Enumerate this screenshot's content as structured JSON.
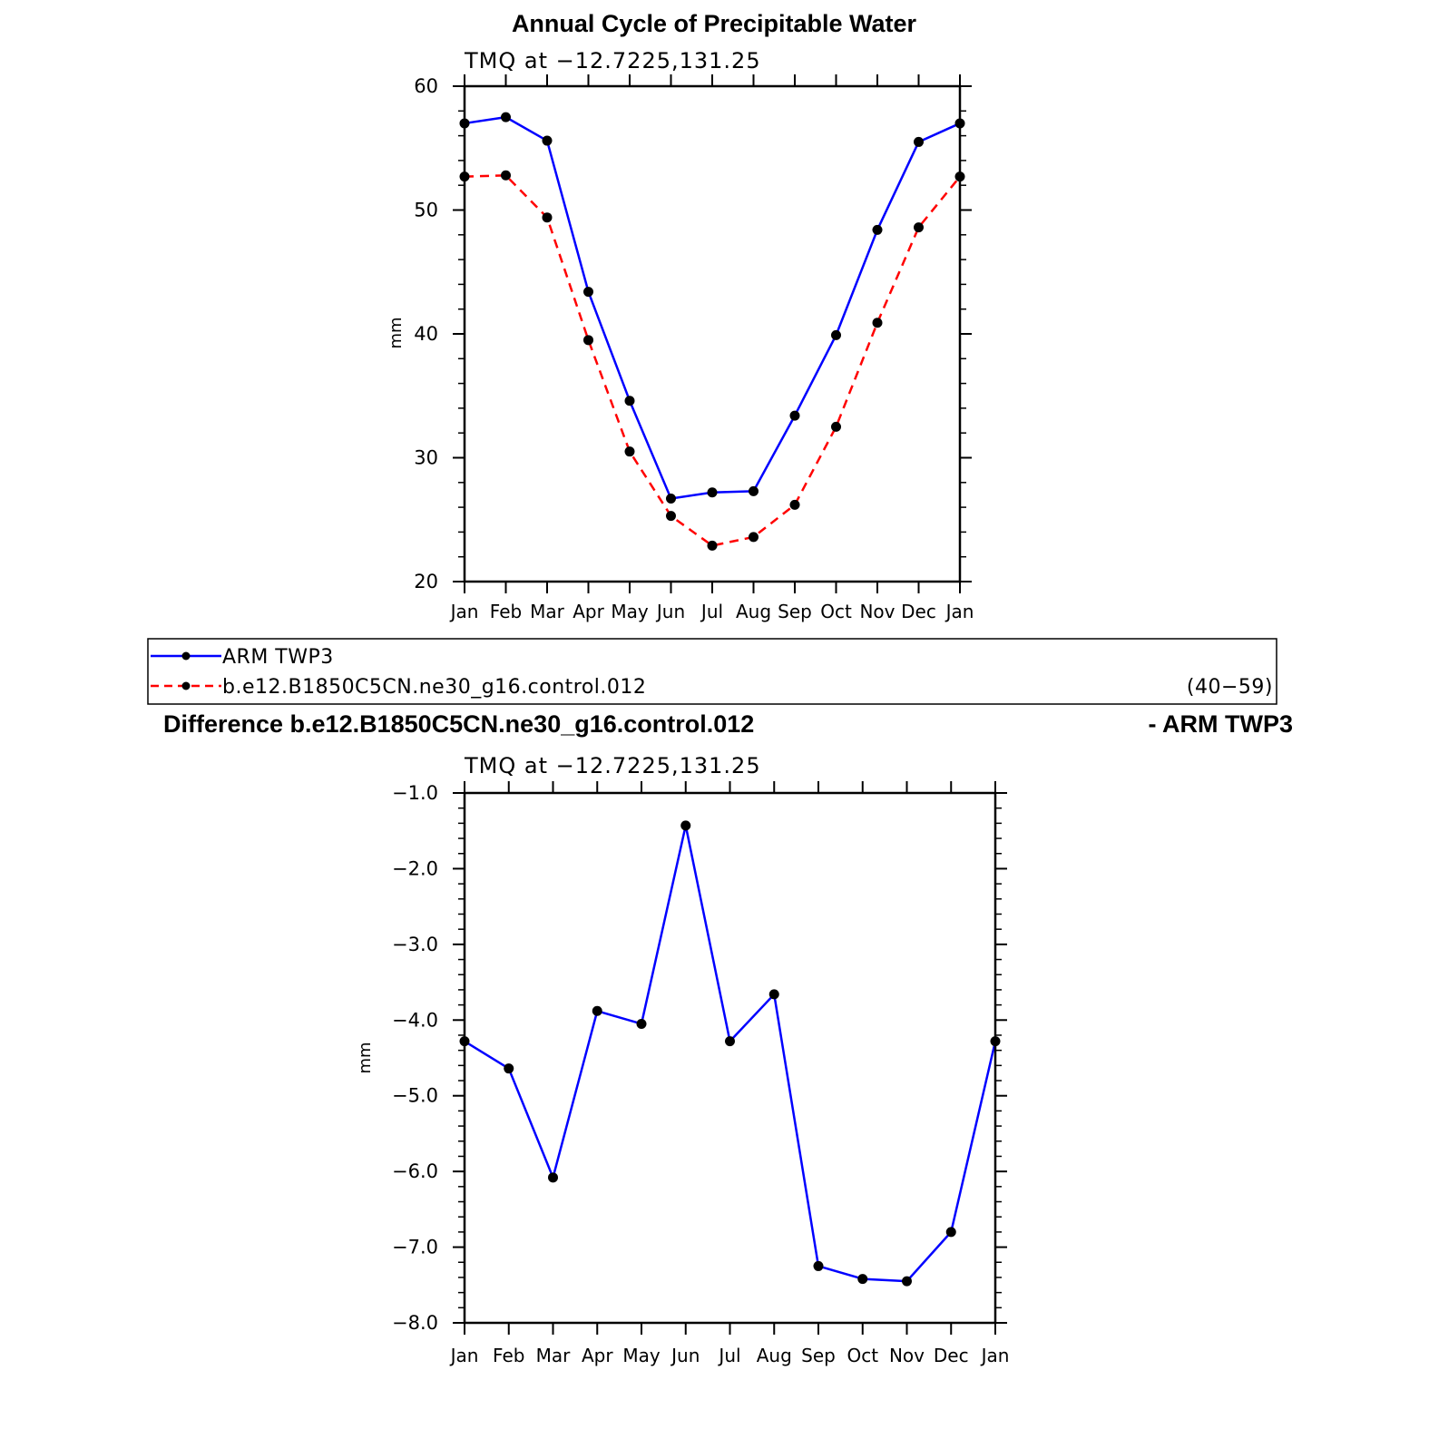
{
  "colors": {
    "arm_line": "#0000ff",
    "model_line": "#ff0000",
    "marker": "#000000",
    "diff_line": "#0000ff"
  },
  "chart_data": [
    {
      "type": "line",
      "title": "Annual Cycle of Precipitable Water",
      "subtitle": "TMQ at −12.7225,131.25",
      "xlabel": "",
      "ylabel": "mm",
      "categories": [
        "Jan",
        "Feb",
        "Mar",
        "Apr",
        "May",
        "Jun",
        "Jul",
        "Aug",
        "Sep",
        "Oct",
        "Nov",
        "Dec",
        "Jan"
      ],
      "ylim": [
        20,
        60
      ],
      "yticks": [
        20,
        30,
        40,
        50,
        60
      ],
      "ytick_labels": [
        "20",
        "30",
        "40",
        "50",
        "60"
      ],
      "grid": false,
      "series": [
        {
          "name": "ARM TWP3",
          "style": "solid",
          "color": "#0000ff",
          "values": [
            57.0,
            57.5,
            55.6,
            43.4,
            34.6,
            26.7,
            27.2,
            27.3,
            33.4,
            39.9,
            48.4,
            55.5,
            57.0
          ]
        },
        {
          "name": "b.e12.B1850C5CN.ne30_g16.control.012",
          "style": "dashed",
          "color": "#ff0000",
          "values": [
            52.7,
            52.8,
            49.4,
            39.5,
            30.5,
            25.3,
            22.9,
            23.6,
            26.2,
            32.5,
            40.9,
            48.6,
            52.7
          ]
        }
      ]
    },
    {
      "type": "line",
      "title": "",
      "subtitle": "TMQ at −12.7225,131.25",
      "xlabel": "",
      "ylabel": "mm",
      "categories": [
        "Jan",
        "Feb",
        "Mar",
        "Apr",
        "May",
        "Jun",
        "Jul",
        "Aug",
        "Sep",
        "Oct",
        "Nov",
        "Dec",
        "Jan"
      ],
      "ylim": [
        -8.0,
        -1.0
      ],
      "yticks": [
        -8,
        -7,
        -6,
        -5,
        -4,
        -3,
        -2,
        -1
      ],
      "ytick_labels": [
        "−8.0",
        "−7.0",
        "−6.0",
        "−5.0",
        "−4.0",
        "−3.0",
        "−2.0",
        "−1.0"
      ],
      "grid": false,
      "series": [
        {
          "name": "Difference",
          "style": "solid",
          "color": "#0000ff",
          "values": [
            -4.28,
            -4.64,
            -6.08,
            -3.88,
            -4.05,
            -1.43,
            -4.28,
            -3.66,
            -7.25,
            -7.42,
            -7.45,
            -6.8,
            -4.28
          ]
        }
      ]
    }
  ],
  "legend": {
    "items": [
      {
        "label": "ARM TWP3"
      },
      {
        "label": "b.e12.B1850C5CN.ne30_g16.control.012"
      }
    ],
    "note": "(40−59)"
  },
  "diff_title": {
    "left": "Difference b.e12.B1850C5CN.ne30_g16.control.012",
    "right": "- ARM TWP3"
  }
}
